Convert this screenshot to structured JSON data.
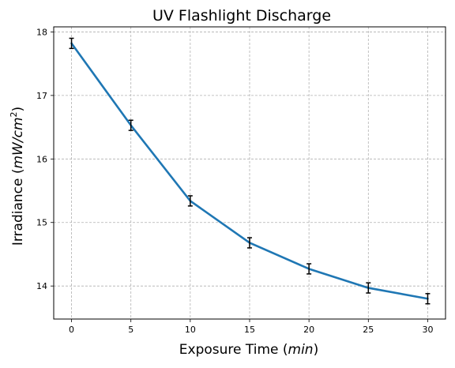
{
  "chart_data": {
    "type": "line",
    "title": "UV Flashlight Discharge",
    "xlabel": {
      "prefix": "Exposure Time (",
      "unit": "min",
      "suffix": ")"
    },
    "ylabel": {
      "prefix": "Irradiance (",
      "unit": "mW/cm",
      "exponent": "2",
      "suffix": ")"
    },
    "x": [
      0,
      5,
      10,
      15,
      20,
      25,
      30
    ],
    "series": [
      {
        "values": [
          17.82,
          16.53,
          15.34,
          14.68,
          14.27,
          13.97,
          13.8
        ],
        "error": [
          0.08,
          0.08,
          0.08,
          0.08,
          0.08,
          0.08,
          0.08
        ],
        "color": "#1f77b4"
      }
    ],
    "xticks": [
      0,
      5,
      10,
      15,
      20,
      25,
      30
    ],
    "yticks": [
      14,
      15,
      16,
      17,
      18
    ],
    "xlim": [
      -1.5,
      31.5
    ],
    "ylim": [
      13.48,
      18.08
    ],
    "grid": true,
    "grid_style": "dashed",
    "error_color": "#000000"
  }
}
